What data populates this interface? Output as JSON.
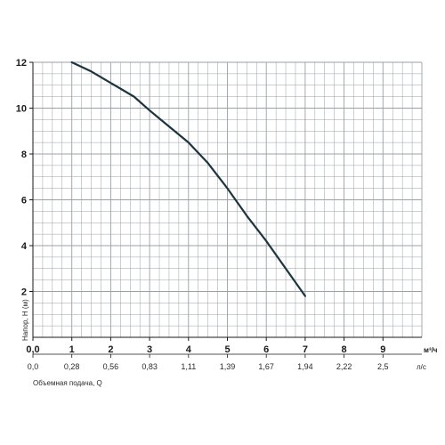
{
  "chart_data": {
    "type": "line",
    "title": "",
    "ylabel": "Напор, H (м)",
    "xlabel_secondary": "Объемная подача, Q",
    "x_unit": "м³/ч",
    "x_secondary_unit": "л/с",
    "xlim": [
      0,
      10
    ],
    "ylim": [
      0,
      12
    ],
    "x_ticks": [
      0,
      1,
      2,
      3,
      4,
      5,
      6,
      7,
      8,
      9
    ],
    "x_tick_labels": [
      "0,0",
      "1",
      "2",
      "3",
      "4",
      "5",
      "6",
      "7",
      "8",
      "9"
    ],
    "x_secondary_tick_labels": [
      "0,0",
      "0,28",
      "0,56",
      "0,83",
      "1,11",
      "1,39",
      "1,67",
      "1,94",
      "2,22",
      "2,5"
    ],
    "y_ticks": [
      2,
      4,
      6,
      8,
      10,
      12
    ],
    "y_tick_labels": [
      "2",
      "4",
      "6",
      "8",
      "10",
      "12"
    ],
    "grid": true,
    "grid_minor_x_step": 0.25,
    "grid_minor_y_step": 0.5,
    "series": [
      {
        "x": [
          1.0,
          1.5,
          2.0,
          2.6,
          3.0,
          3.5,
          4.0,
          4.5,
          5.0,
          5.5,
          6.0,
          6.5,
          7.0
        ],
        "y": [
          12.0,
          11.6,
          11.1,
          10.5,
          9.9,
          9.2,
          8.5,
          7.6,
          6.5,
          5.3,
          4.2,
          3.0,
          1.8
        ]
      }
    ],
    "colors": {
      "line": "#1c3540",
      "grid": "#9aa0a6",
      "axis": "#1a1a1a",
      "text": "#1a1a1a"
    }
  }
}
